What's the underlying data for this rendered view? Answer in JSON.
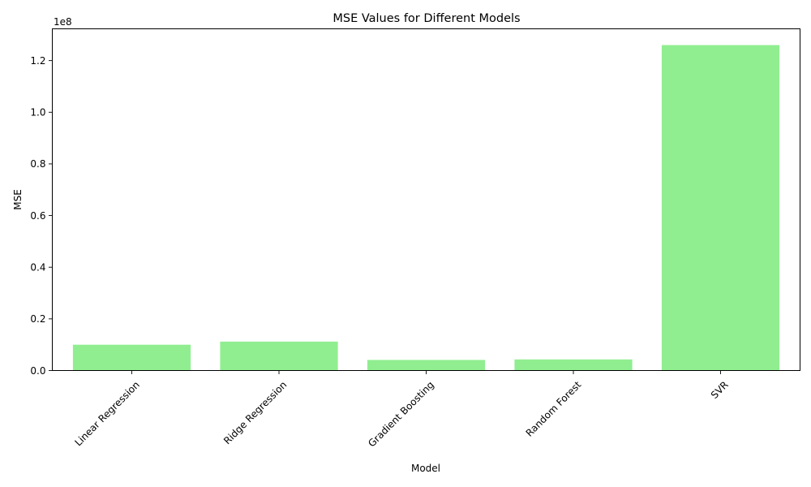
{
  "chart_data": {
    "type": "bar",
    "title": "MSE Values for Different Models",
    "xlabel": "Model",
    "ylabel": "MSE",
    "offset_text": "1e8",
    "categories": [
      "Linear Regression",
      "Ridge Regression",
      "Gradient Boosting",
      "Random Forest",
      "SVR"
    ],
    "values": [
      10000000,
      11200000,
      4100000,
      4300000,
      126000000
    ],
    "ylim": [
      0,
      132300000
    ],
    "yticks": [
      0,
      20000000,
      40000000,
      60000000,
      80000000,
      100000000,
      120000000
    ],
    "ytick_labels": [
      "0.0",
      "0.2",
      "0.4",
      "0.6",
      "0.8",
      "1.0",
      "1.2"
    ],
    "bar_color": "#90ee90",
    "grid": false,
    "legend": "none"
  }
}
